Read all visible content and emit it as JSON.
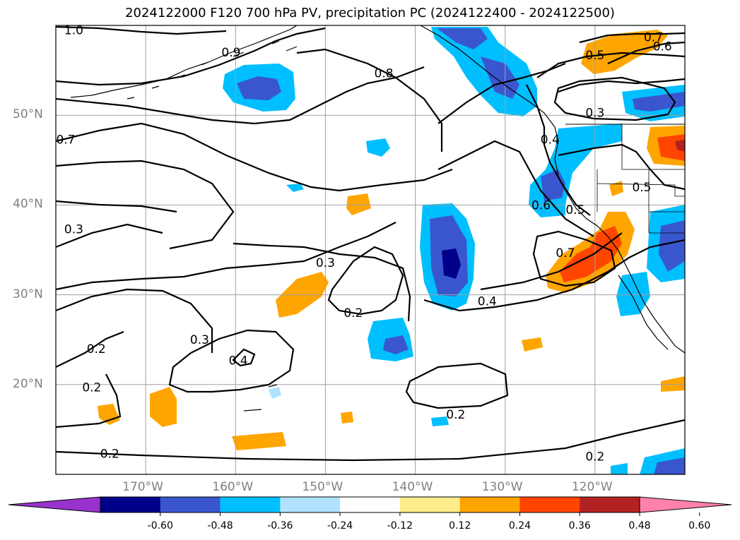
{
  "title": "2024122000 F120 700 hPa PV, precipitation PC (2024122400 - 2024122500)",
  "chart_data": {
    "type": "contour-map",
    "projection": "PlateCarree",
    "lon_range": [
      -180,
      -110
    ],
    "lat_range": [
      10,
      60
    ],
    "grid": true,
    "lat_ticks": [
      {
        "value": 20,
        "label": "20°N"
      },
      {
        "value": 30,
        "label": "30°N"
      },
      {
        "value": 40,
        "label": "40°N"
      },
      {
        "value": 50,
        "label": "50°N"
      }
    ],
    "lon_ticks": [
      {
        "value": -170,
        "label": "170°W"
      },
      {
        "value": -160,
        "label": "160°W"
      },
      {
        "value": -150,
        "label": "150°W"
      },
      {
        "value": -140,
        "label": "140°W"
      },
      {
        "value": -130,
        "label": "130°W"
      },
      {
        "value": -120,
        "label": "120°W"
      }
    ],
    "colorbar": {
      "ticks": [
        "-0.60",
        "-0.48",
        "-0.36",
        "-0.24",
        "-0.12",
        "0.12",
        "0.24",
        "0.36",
        "0.48",
        "0.60"
      ],
      "colors": [
        "#9932cc",
        "#00008b",
        "#3a56cf",
        "#00bfff",
        "#b0e2ff",
        "#ffffff",
        "#ffec8b",
        "#ffa500",
        "#ff4500",
        "#b22222",
        "#ff82ab"
      ],
      "extend": "both"
    },
    "pv_contour_labels": [
      {
        "text": "1.0",
        "lon": -178.0,
        "lat": 59.5
      },
      {
        "text": "0.9",
        "lon": -160.5,
        "lat": 57.0
      },
      {
        "text": "0.8",
        "lon": -143.5,
        "lat": 54.7
      },
      {
        "text": "0.7",
        "lon": -178.9,
        "lat": 47.3
      },
      {
        "text": "0.7",
        "lon": -113.5,
        "lat": 58.7
      },
      {
        "text": "0.6",
        "lon": -112.5,
        "lat": 57.7
      },
      {
        "text": "0.5",
        "lon": -120.0,
        "lat": 56.7
      },
      {
        "text": "0.3",
        "lon": -120.0,
        "lat": 50.3
      },
      {
        "text": "0.4",
        "lon": -125.0,
        "lat": 47.3
      },
      {
        "text": "0.6",
        "lon": -126.0,
        "lat": 40.0
      },
      {
        "text": "0.5",
        "lon": -122.2,
        "lat": 39.5
      },
      {
        "text": "0.5",
        "lon": -114.8,
        "lat": 42.0
      },
      {
        "text": "0.7",
        "lon": -123.3,
        "lat": 34.7
      },
      {
        "text": "0.4",
        "lon": -132.0,
        "lat": 29.3
      },
      {
        "text": "0.3",
        "lon": -178.0,
        "lat": 37.3
      },
      {
        "text": "0.3",
        "lon": -150.0,
        "lat": 33.6
      },
      {
        "text": "0.2",
        "lon": -146.9,
        "lat": 28.0
      },
      {
        "text": "0.3",
        "lon": -164.0,
        "lat": 25.0
      },
      {
        "text": "0.4",
        "lon": -159.7,
        "lat": 22.7
      },
      {
        "text": "0.2",
        "lon": -175.5,
        "lat": 24.0
      },
      {
        "text": "0.2",
        "lon": -176.0,
        "lat": 19.7
      },
      {
        "text": "0.2",
        "lon": -135.5,
        "lat": 16.7
      },
      {
        "text": "0.2",
        "lon": -120.0,
        "lat": 12.0
      },
      {
        "text": "0.2",
        "lon": -174.0,
        "lat": 12.3
      }
    ]
  }
}
